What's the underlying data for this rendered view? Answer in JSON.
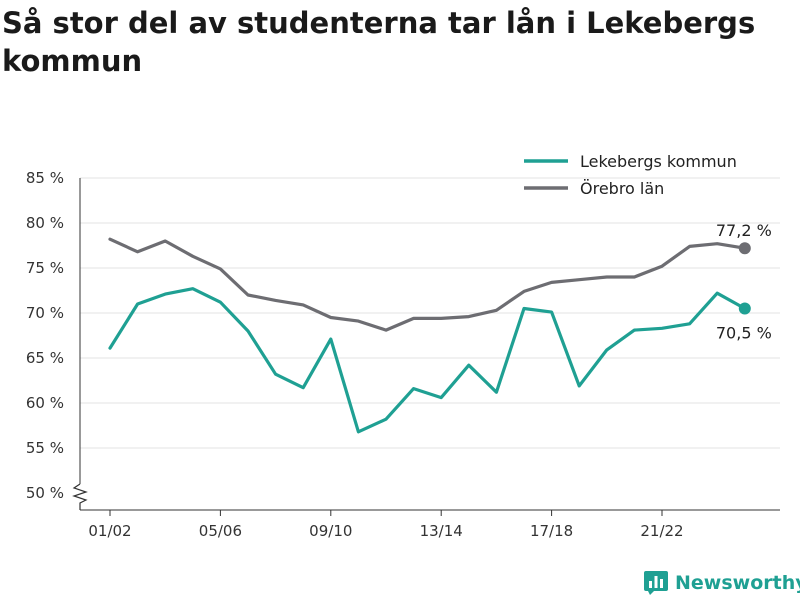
{
  "title": "Så stor del av studenterna tar lån i Lekebergs kommun",
  "brand": {
    "name": "Newsworthy",
    "icon": "bar-chart-logo-icon"
  },
  "chart_data": {
    "type": "line",
    "title": "Så stor del av studenterna tar lån i Lekebergs kommun",
    "xlabel": "",
    "ylabel": "",
    "ylim": [
      50,
      85
    ],
    "y_ticks": [
      {
        "value": 50,
        "label": "50 %"
      },
      {
        "value": 55,
        "label": "55 %"
      },
      {
        "value": 60,
        "label": "60 %"
      },
      {
        "value": 65,
        "label": "65 %"
      },
      {
        "value": 70,
        "label": "70 %"
      },
      {
        "value": 75,
        "label": "75 %"
      },
      {
        "value": 80,
        "label": "80 %"
      },
      {
        "value": 85,
        "label": "85 %"
      }
    ],
    "y_axis_break": true,
    "grid": true,
    "legend_position": "top-right",
    "categories": [
      "01/02",
      "02/03",
      "03/04",
      "04/05",
      "05/06",
      "06/07",
      "07/08",
      "08/09",
      "09/10",
      "10/11",
      "11/12",
      "12/13",
      "13/14",
      "14/15",
      "15/16",
      "16/17",
      "17/18",
      "18/19",
      "19/20",
      "20/21",
      "21/22",
      "22/23",
      "23/24",
      "24/25"
    ],
    "x_ticks": [
      {
        "index": 0,
        "label": "01/02"
      },
      {
        "index": 4,
        "label": "05/06"
      },
      {
        "index": 8,
        "label": "09/10"
      },
      {
        "index": 12,
        "label": "13/14"
      },
      {
        "index": 16,
        "label": "17/18"
      },
      {
        "index": 20,
        "label": "21/22"
      }
    ],
    "series": [
      {
        "name": "Lekebergs kommun",
        "color": "#1fa093",
        "values": [
          66.1,
          71.0,
          72.1,
          72.7,
          71.2,
          68.0,
          63.2,
          61.7,
          67.1,
          56.8,
          58.2,
          61.6,
          60.6,
          64.2,
          61.2,
          70.5,
          70.1,
          61.9,
          65.9,
          68.1,
          68.3,
          68.8,
          72.2,
          70.5
        ],
        "end_label": "70,5 %"
      },
      {
        "name": "Örebro län",
        "color": "#6d6d72",
        "values": [
          78.2,
          76.8,
          78.0,
          76.3,
          74.9,
          72.0,
          71.4,
          70.9,
          69.5,
          69.1,
          68.1,
          69.4,
          69.4,
          69.6,
          70.3,
          72.4,
          73.4,
          73.7,
          74.0,
          74.0,
          75.2,
          77.4,
          77.7,
          77.2
        ],
        "end_label": "77,2 %"
      }
    ]
  }
}
